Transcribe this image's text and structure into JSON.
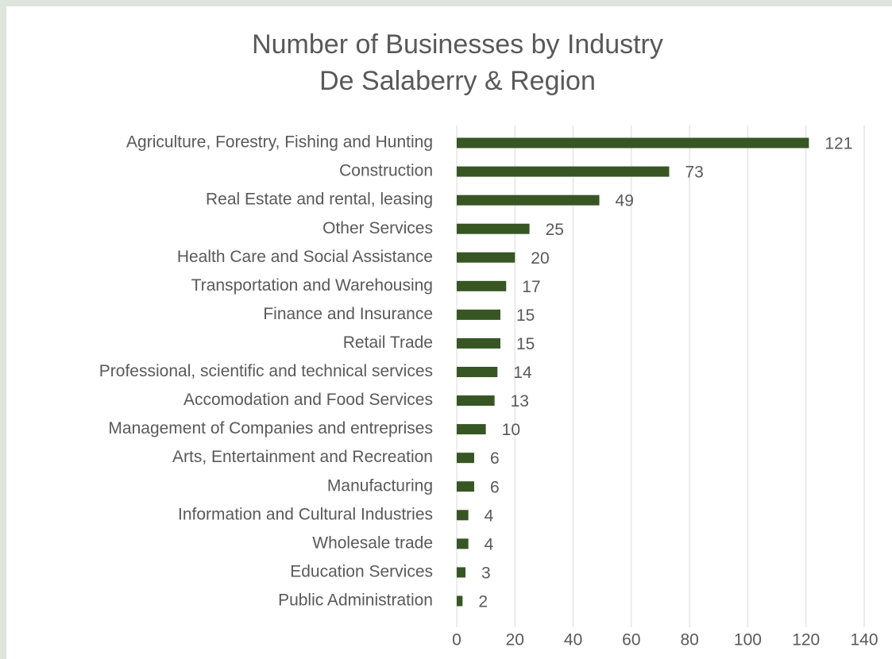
{
  "chart_data": {
    "type": "bar",
    "orientation": "horizontal",
    "title": "Number of Businesses by Industry",
    "subtitle": "De Salaberry & Region",
    "categories": [
      "Agriculture, Forestry, Fishing and Hunting",
      "Construction",
      "Real Estate and rental, leasing",
      "Other Services",
      "Health Care and Social Assistance",
      "Transportation and Warehousing",
      "Finance and Insurance",
      "Retail Trade",
      "Professional, scientific and technical services",
      "Accomodation and Food Services",
      "Management of Companies and entreprises",
      "Arts, Entertainment and Recreation",
      "Manufacturing",
      "Information and Cultural Industries",
      "Wholesale trade",
      "Education Services",
      "Public Administration"
    ],
    "values": [
      121,
      73,
      49,
      25,
      20,
      17,
      15,
      15,
      14,
      13,
      10,
      6,
      6,
      4,
      4,
      3,
      2
    ],
    "color": "#375623",
    "xlim": [
      0,
      140
    ],
    "xticks": [
      0,
      20,
      40,
      60,
      80,
      100,
      120,
      140
    ],
    "grid": true
  }
}
